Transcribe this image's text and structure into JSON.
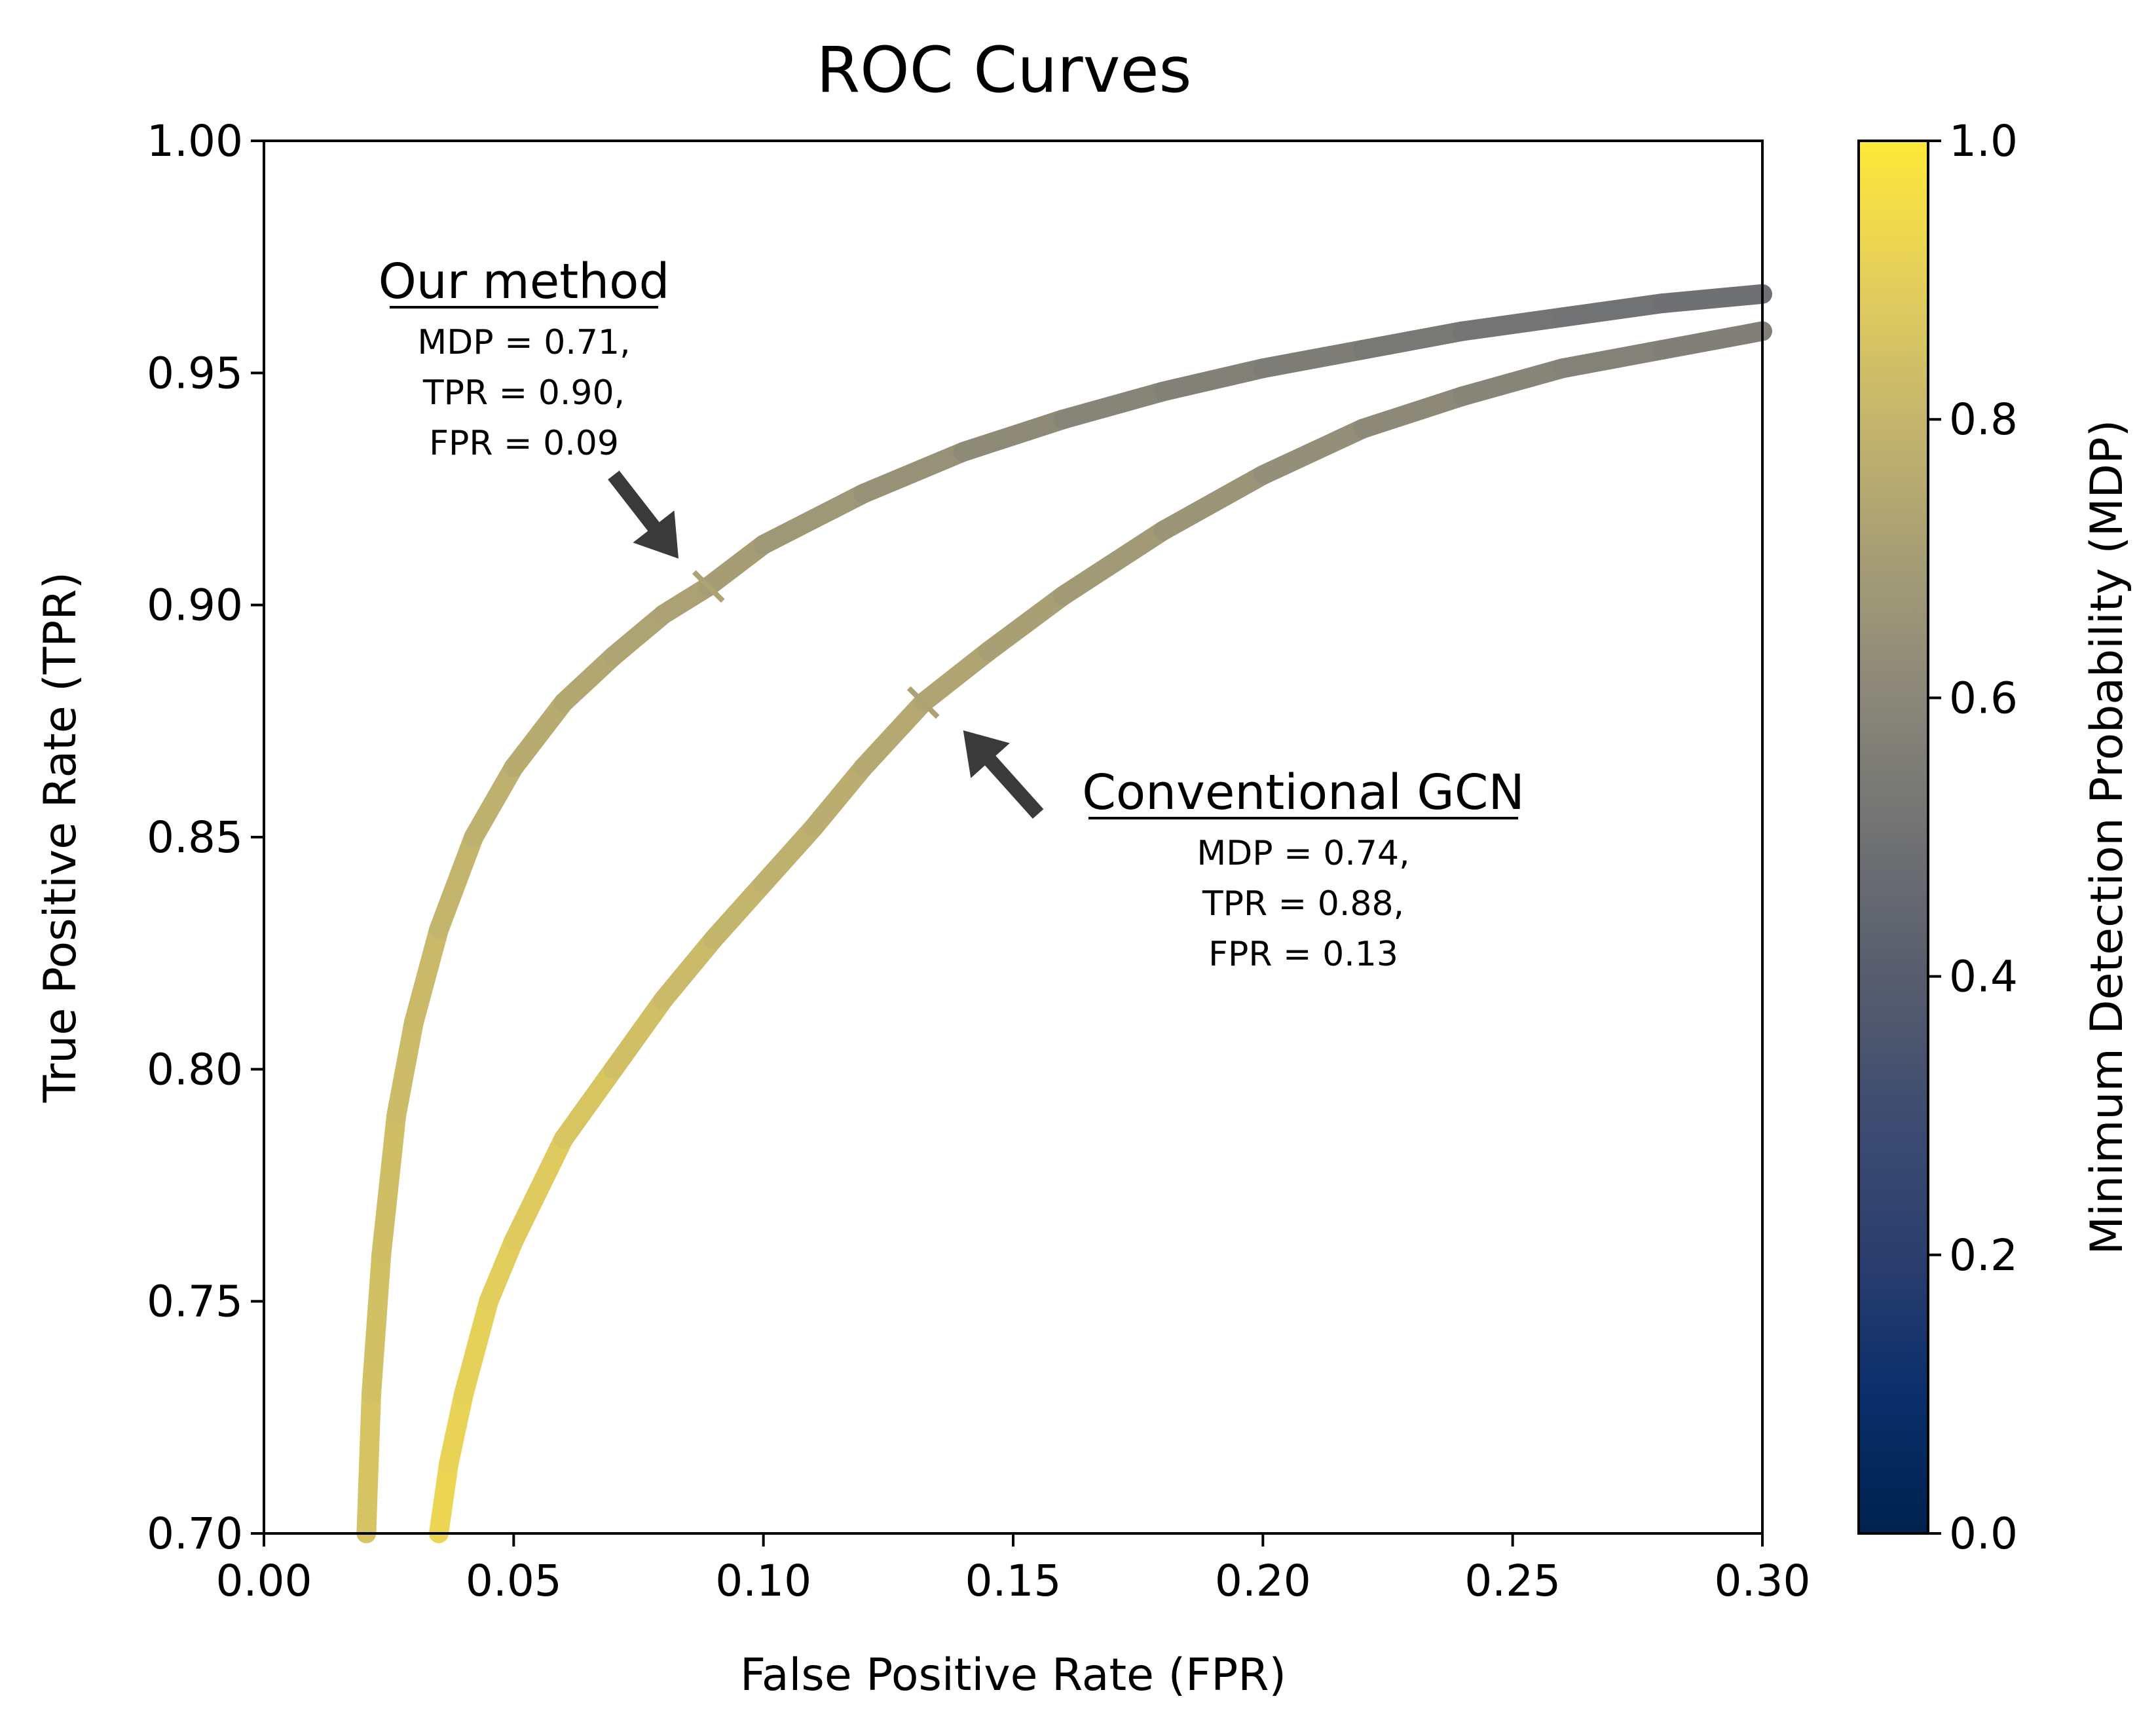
{
  "chart_data": {
    "type": "line",
    "title": "ROC Curves",
    "xlabel": "False Positive Rate (FPR)",
    "ylabel": "True Positive Rate (TPR)",
    "xlim": [
      0.0,
      0.3
    ],
    "ylim": [
      0.7,
      1.0
    ],
    "x_ticks": [
      "0.00",
      "0.05",
      "0.10",
      "0.15",
      "0.20",
      "0.25",
      "0.30"
    ],
    "y_ticks": [
      "0.70",
      "0.75",
      "0.80",
      "0.85",
      "0.90",
      "0.95",
      "1.00"
    ],
    "grid": false,
    "colorbar": {
      "label": "Minimum Detection Probability (MDP)",
      "colormap": "cividis",
      "range": [
        0.0,
        1.0
      ],
      "ticks": [
        "0.0",
        "0.2",
        "0.4",
        "0.6",
        "0.8",
        "1.0"
      ]
    },
    "series": [
      {
        "name": "Our method",
        "points": [
          {
            "x": 0.0205,
            "y": 0.7,
            "mdp": 0.86
          },
          {
            "x": 0.0215,
            "y": 0.73,
            "mdp": 0.85
          },
          {
            "x": 0.0235,
            "y": 0.76,
            "mdp": 0.84
          },
          {
            "x": 0.0265,
            "y": 0.79,
            "mdp": 0.83
          },
          {
            "x": 0.03,
            "y": 0.81,
            "mdp": 0.82
          },
          {
            "x": 0.035,
            "y": 0.83,
            "mdp": 0.81
          },
          {
            "x": 0.042,
            "y": 0.85,
            "mdp": 0.79
          },
          {
            "x": 0.05,
            "y": 0.865,
            "mdp": 0.77
          },
          {
            "x": 0.06,
            "y": 0.879,
            "mdp": 0.75
          },
          {
            "x": 0.07,
            "y": 0.889,
            "mdp": 0.73
          },
          {
            "x": 0.08,
            "y": 0.898,
            "mdp": 0.72
          },
          {
            "x": 0.089,
            "y": 0.904,
            "mdp": 0.71
          },
          {
            "x": 0.1,
            "y": 0.913,
            "mdp": 0.69
          },
          {
            "x": 0.12,
            "y": 0.924,
            "mdp": 0.66
          },
          {
            "x": 0.14,
            "y": 0.933,
            "mdp": 0.63
          },
          {
            "x": 0.16,
            "y": 0.94,
            "mdp": 0.6
          },
          {
            "x": 0.18,
            "y": 0.946,
            "mdp": 0.58
          },
          {
            "x": 0.2,
            "y": 0.951,
            "mdp": 0.56
          },
          {
            "x": 0.22,
            "y": 0.955,
            "mdp": 0.54
          },
          {
            "x": 0.24,
            "y": 0.959,
            "mdp": 0.52
          },
          {
            "x": 0.26,
            "y": 0.962,
            "mdp": 0.51
          },
          {
            "x": 0.28,
            "y": 0.965,
            "mdp": 0.5
          },
          {
            "x": 0.3,
            "y": 0.967,
            "mdp": 0.49
          }
        ],
        "marker": {
          "x": 0.089,
          "y": 0.904
        }
      },
      {
        "name": "Conventional GCN",
        "points": [
          {
            "x": 0.035,
            "y": 0.7,
            "mdp": 0.93
          },
          {
            "x": 0.037,
            "y": 0.715,
            "mdp": 0.92
          },
          {
            "x": 0.04,
            "y": 0.73,
            "mdp": 0.91
          },
          {
            "x": 0.045,
            "y": 0.75,
            "mdp": 0.9
          },
          {
            "x": 0.05,
            "y": 0.763,
            "mdp": 0.89
          },
          {
            "x": 0.06,
            "y": 0.785,
            "mdp": 0.87
          },
          {
            "x": 0.07,
            "y": 0.8,
            "mdp": 0.85
          },
          {
            "x": 0.08,
            "y": 0.815,
            "mdp": 0.83
          },
          {
            "x": 0.09,
            "y": 0.828,
            "mdp": 0.81
          },
          {
            "x": 0.1,
            "y": 0.84,
            "mdp": 0.79
          },
          {
            "x": 0.11,
            "y": 0.852,
            "mdp": 0.77
          },
          {
            "x": 0.12,
            "y": 0.865,
            "mdp": 0.76
          },
          {
            "x": 0.132,
            "y": 0.879,
            "mdp": 0.74
          },
          {
            "x": 0.145,
            "y": 0.89,
            "mdp": 0.72
          },
          {
            "x": 0.16,
            "y": 0.902,
            "mdp": 0.7
          },
          {
            "x": 0.18,
            "y": 0.916,
            "mdp": 0.67
          },
          {
            "x": 0.2,
            "y": 0.928,
            "mdp": 0.65
          },
          {
            "x": 0.22,
            "y": 0.938,
            "mdp": 0.62
          },
          {
            "x": 0.24,
            "y": 0.945,
            "mdp": 0.6
          },
          {
            "x": 0.26,
            "y": 0.951,
            "mdp": 0.58
          },
          {
            "x": 0.28,
            "y": 0.955,
            "mdp": 0.57
          },
          {
            "x": 0.3,
            "y": 0.959,
            "mdp": 0.56
          }
        ],
        "marker": {
          "x": 0.132,
          "y": 0.879
        }
      }
    ],
    "annotations": [
      {
        "heading": "Our method",
        "lines": [
          "MDP = 0.71,",
          "TPR = 0.90,",
          "FPR = 0.09"
        ],
        "points_to": {
          "x": 0.083,
          "y": 0.91
        },
        "arrow_from": {
          "x": 0.07,
          "y": 0.928
        }
      },
      {
        "heading": "Conventional GCN",
        "lines": [
          "MDP = 0.74,",
          "TPR = 0.88,",
          "FPR = 0.13"
        ],
        "points_to": {
          "x": 0.14,
          "y": 0.873
        },
        "arrow_from": {
          "x": 0.155,
          "y": 0.855
        }
      }
    ]
  }
}
